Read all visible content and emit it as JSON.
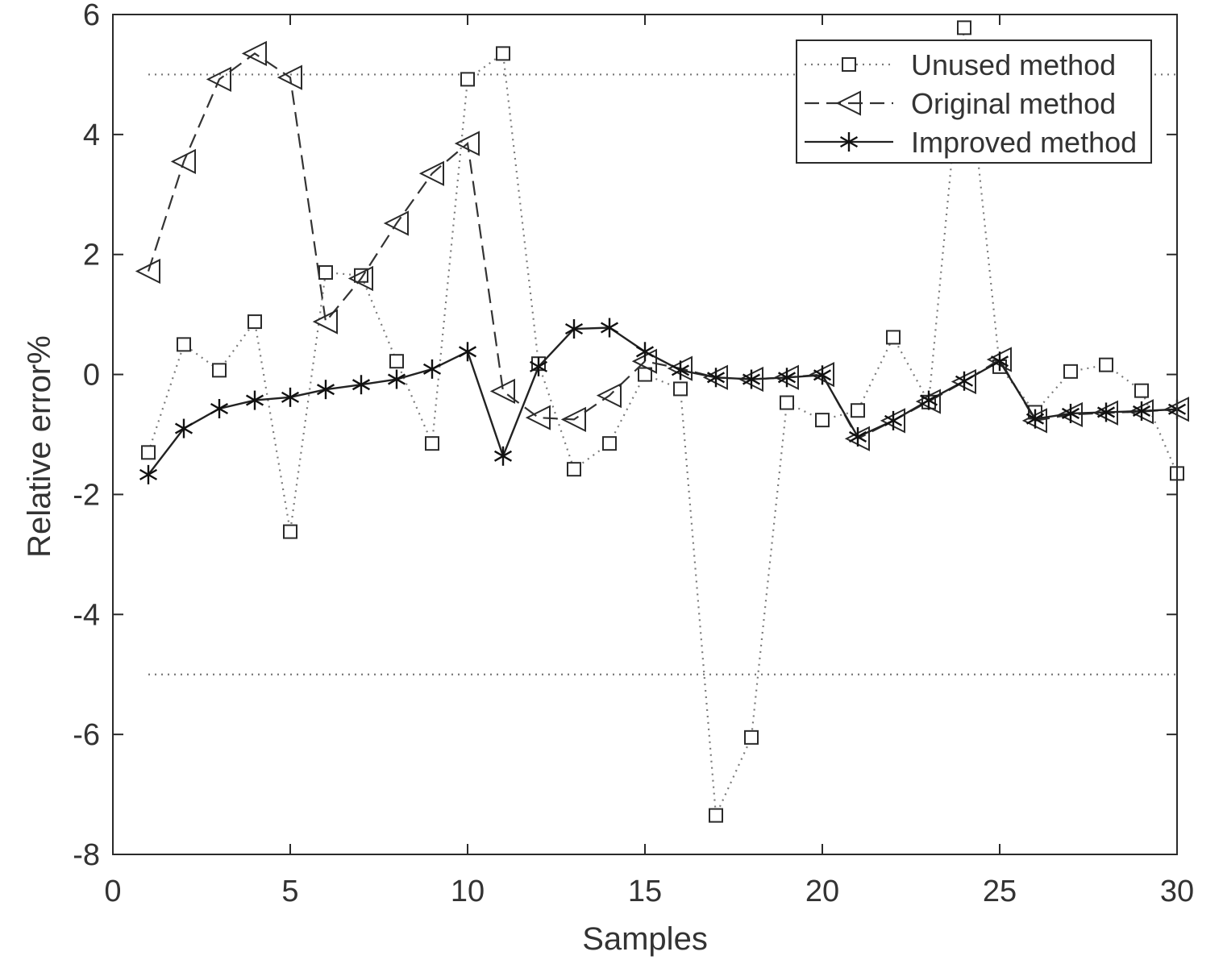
{
  "chart_data": {
    "type": "line",
    "title": "",
    "xlabel": "Samples",
    "ylabel": "Relative error%",
    "xlim": [
      0,
      30
    ],
    "ylim": [
      -8,
      6
    ],
    "xticks": [
      0,
      5,
      10,
      15,
      20,
      25,
      30
    ],
    "yticks": [
      -8,
      -6,
      -4,
      -2,
      0,
      2,
      4,
      6
    ],
    "grid": false,
    "legend_position": "top-right",
    "reference_lines": [
      {
        "y": 5,
        "style": "dotted",
        "x_range": [
          1,
          30
        ]
      },
      {
        "y": -5,
        "style": "dotted",
        "x_range": [
          1,
          30
        ]
      }
    ],
    "x": [
      1,
      2,
      3,
      4,
      5,
      6,
      7,
      8,
      9,
      10,
      11,
      12,
      13,
      14,
      15,
      16,
      17,
      18,
      19,
      20,
      21,
      22,
      23,
      24,
      25,
      26,
      27,
      28,
      29,
      30
    ],
    "series": [
      {
        "name": "Unused method",
        "line_style": "dotted",
        "marker": "square",
        "values": [
          -1.3,
          0.5,
          0.07,
          0.88,
          -2.62,
          1.7,
          1.65,
          0.22,
          -1.15,
          4.92,
          5.35,
          0.18,
          -1.58,
          -1.15,
          0.0,
          -0.24,
          -7.35,
          -6.05,
          -0.47,
          -0.76,
          -0.6,
          0.62,
          -0.46,
          5.78,
          0.13,
          -0.63,
          0.05,
          0.16,
          -0.27,
          -1.65
        ]
      },
      {
        "name": "Original method",
        "line_style": "dashed",
        "marker": "triangle-left",
        "values": [
          1.72,
          3.55,
          4.92,
          5.35,
          4.95,
          0.88,
          1.6,
          2.52,
          3.35,
          3.85,
          -0.28,
          -0.72,
          -0.75,
          -0.35,
          0.22,
          0.1,
          -0.05,
          -0.08,
          -0.05,
          0.0,
          -1.07,
          -0.77,
          -0.45,
          -0.12,
          0.25,
          -0.77,
          -0.67,
          -0.64,
          -0.62,
          -0.58
        ]
      },
      {
        "name": "Improved method",
        "line_style": "solid",
        "marker": "asterisk",
        "values": [
          -1.67,
          -0.9,
          -0.57,
          -0.43,
          -0.38,
          -0.25,
          -0.17,
          -0.08,
          0.09,
          0.38,
          -1.36,
          0.13,
          0.76,
          0.78,
          0.38,
          0.07,
          -0.05,
          -0.08,
          -0.05,
          -0.01,
          -1.04,
          -0.77,
          -0.43,
          -0.11,
          0.22,
          -0.74,
          -0.65,
          -0.63,
          -0.61,
          -0.58
        ]
      }
    ]
  }
}
